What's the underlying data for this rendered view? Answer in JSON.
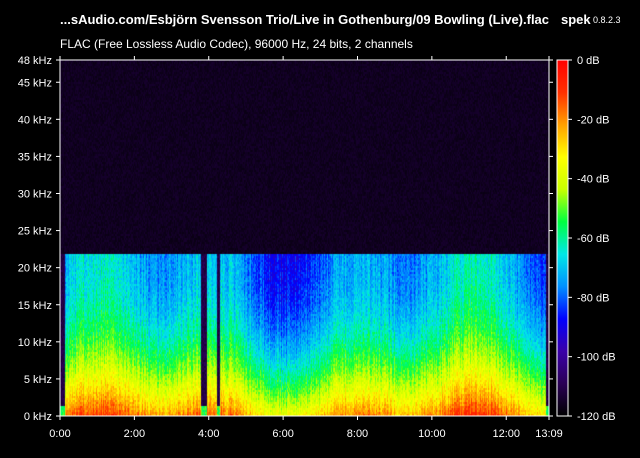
{
  "header": {
    "file_path": "...sAudio.com/Esbjörn Svensson Trio/Live in Gothenburg/09 Bowling (Live).flac",
    "app_name": "spek",
    "app_version": "0.8.2.3",
    "stream_info": "FLAC (Free Lossless Audio Codec), 96000 Hz, 24 bits, 2 channels"
  },
  "chart_data": {
    "type": "heatmap",
    "title": "...sAudio.com/Esbjörn Svensson Trio/Live in Gothenburg/09 Bowling (Live).flac",
    "subtitle": "FLAC (Free Lossless Audio Codec), 96000 Hz, 24 bits, 2 channels",
    "x_axis": {
      "unit": "time",
      "range_seconds": [
        0,
        789
      ],
      "tick_labels": [
        "0:00",
        "2:00",
        "4:00",
        "6:00",
        "8:00",
        "10:00",
        "12:00",
        "13:09"
      ],
      "tick_seconds": [
        0,
        120,
        240,
        360,
        480,
        600,
        720,
        789
      ]
    },
    "y_axis": {
      "unit": "kHz",
      "range": [
        0,
        48
      ],
      "tick_labels": [
        "0 kHz",
        "5 kHz",
        "10 kHz",
        "15 kHz",
        "20 kHz",
        "25 kHz",
        "30 kHz",
        "35 kHz",
        "40 kHz",
        "45 kHz",
        "48 kHz"
      ],
      "tick_values": [
        0,
        5,
        10,
        15,
        20,
        25,
        30,
        35,
        40,
        45,
        48
      ]
    },
    "color_scale": {
      "unit": "dB",
      "range": [
        -120,
        0
      ],
      "tick_labels": [
        "0 dB",
        "-20 dB",
        "-40 dB",
        "-60 dB",
        "-80 dB",
        "-100 dB",
        "-120 dB"
      ],
      "tick_values": [
        0,
        -20,
        -40,
        -60,
        -80,
        -100,
        -120
      ],
      "colors": [
        "#000000",
        "#2a0055",
        "#3a00a8",
        "#0000ff",
        "#0090ff",
        "#00e8e8",
        "#00ff40",
        "#c8ff00",
        "#ffff00",
        "#ffa000",
        "#ff3000",
        "#ff0000"
      ]
    },
    "content_cutoff_khz": 22,
    "quiet_segments_seconds": [
      [
        0,
        7
      ],
      [
        226,
        236
      ],
      [
        252,
        258
      ],
      [
        784,
        789
      ]
    ]
  }
}
